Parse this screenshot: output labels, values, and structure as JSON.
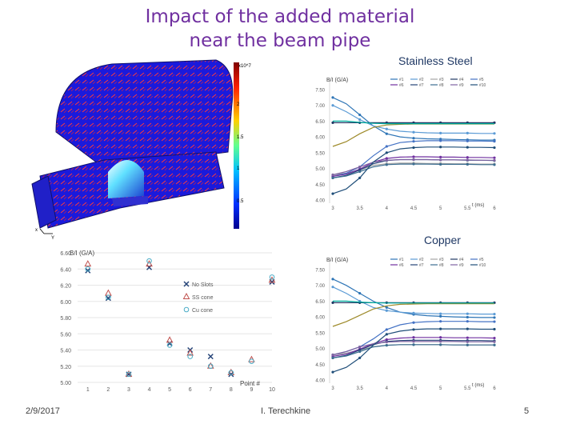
{
  "slide": {
    "title_line1": "Impact of the added material",
    "title_line2": "near the beam pipe",
    "label_ss": "Stainless Steel",
    "label_cu": "Copper",
    "footer_date": "2/9/2017",
    "footer_author": "I. Terechkine",
    "footer_page": "5"
  },
  "sim": {
    "colorbar_exp": "x10^7",
    "colorbar_ticks": [
      "2",
      "1.5",
      "1",
      "0.5"
    ],
    "axis_x": "x",
    "axis_y": "Y"
  },
  "colors": {
    "title": "#7030a0",
    "series": [
      "#2e75b6",
      "#5b9bd5",
      "#a5a5a5",
      "#203864",
      "#4472c4",
      "#7030a0",
      "#264478",
      "#3c6e91",
      "#8064a2",
      "#1f4e79",
      "#9e8a2a",
      "#00b0a0"
    ]
  },
  "chart_data": [
    {
      "type": "scatter",
      "ylabel": "B/I (G/A)",
      "xlabel": "Point #",
      "xlim": [
        0.5,
        10
      ],
      "ylim": [
        5.0,
        6.6
      ],
      "x_ticks": [
        1,
        2,
        3,
        4,
        5,
        6,
        7,
        8,
        9,
        10
      ],
      "y_ticks": [
        "5.00",
        "5.20",
        "5.40",
        "5.60",
        "5.80",
        "6.00",
        "6.20",
        "6.40",
        "6.60"
      ],
      "grid": true,
      "legend_position": "right",
      "series": [
        {
          "name": "No Slots",
          "marker": "x",
          "color": "#264478",
          "x": [
            1,
            2,
            3,
            4,
            5,
            6,
            7,
            8,
            10
          ],
          "y": [
            6.38,
            6.04,
            5.1,
            6.42,
            5.48,
            5.4,
            5.32,
            5.1,
            6.24
          ]
        },
        {
          "name": "SS cone",
          "marker": "triangle",
          "color": "#c0504d",
          "x": [
            1,
            2,
            3,
            4,
            5,
            6,
            7,
            8,
            9,
            10
          ],
          "y": [
            6.46,
            6.1,
            5.1,
            6.46,
            5.52,
            5.36,
            5.2,
            5.12,
            5.28,
            6.26
          ]
        },
        {
          "name": "Cu cone",
          "marker": "circle",
          "color": "#4bacc6",
          "x": [
            1,
            2,
            3,
            4,
            5,
            6,
            7,
            8,
            9,
            10
          ],
          "y": [
            6.4,
            6.05,
            5.1,
            6.5,
            5.46,
            5.32,
            5.2,
            5.12,
            5.26,
            6.3
          ]
        }
      ]
    },
    {
      "type": "line",
      "ylabel": "B/I (G/A)",
      "xlabel": "t (ms)",
      "xlim": [
        3,
        6
      ],
      "ylim": [
        4.0,
        7.5
      ],
      "x_ticks": [
        "3",
        "3.5",
        "4",
        "4.5",
        "5",
        "5.5",
        "6"
      ],
      "y_ticks": [
        "4.00",
        "4.50",
        "5.00",
        "5.50",
        "6.00",
        "6.50",
        "7.00",
        "7.50"
      ],
      "legend_position": "top",
      "x": [
        3,
        3.25,
        3.5,
        3.75,
        4,
        4.25,
        4.5,
        4.75,
        5,
        5.25,
        5.5,
        5.75,
        6
      ],
      "series": [
        {
          "name": "#1",
          "y": [
            7.25,
            7.05,
            6.7,
            6.35,
            6.1,
            6.0,
            5.96,
            5.94,
            5.93,
            5.92,
            5.91,
            5.9,
            5.9
          ]
        },
        {
          "name": "#2",
          "y": [
            7.0,
            6.8,
            6.55,
            6.35,
            6.25,
            6.18,
            6.15,
            6.13,
            6.12,
            6.12,
            6.12,
            6.11,
            6.11
          ]
        },
        {
          "name": "#3",
          "y": [
            4.8,
            4.85,
            4.95,
            5.1,
            5.15,
            5.17,
            5.17,
            5.16,
            5.16,
            5.15,
            5.15,
            5.14,
            5.14
          ]
        },
        {
          "name": "#4",
          "y": [
            6.45,
            6.45,
            6.45,
            6.45,
            6.45,
            6.45,
            6.45,
            6.45,
            6.45,
            6.45,
            6.45,
            6.45,
            6.45
          ]
        },
        {
          "name": "#5",
          "y": [
            4.75,
            4.85,
            5.05,
            5.4,
            5.7,
            5.82,
            5.86,
            5.88,
            5.88,
            5.88,
            5.87,
            5.87,
            5.86
          ]
        },
        {
          "name": "#6",
          "y": [
            4.75,
            4.82,
            4.98,
            5.2,
            5.32,
            5.36,
            5.37,
            5.37,
            5.36,
            5.36,
            5.35,
            5.35,
            5.34
          ]
        },
        {
          "name": "#7",
          "y": [
            4.7,
            4.78,
            4.95,
            5.15,
            5.25,
            5.28,
            5.28,
            5.28,
            5.27,
            5.27,
            5.26,
            5.26,
            5.25
          ]
        },
        {
          "name": "#8",
          "y": [
            4.7,
            4.76,
            4.9,
            5.05,
            5.12,
            5.14,
            5.14,
            5.14,
            5.13,
            5.13,
            5.13,
            5.12,
            5.12
          ]
        },
        {
          "name": "#9",
          "y": [
            4.8,
            4.9,
            5.05,
            5.2,
            5.26,
            5.28,
            5.28,
            5.28,
            5.27,
            5.27,
            5.27,
            5.26,
            5.26
          ]
        },
        {
          "name": "#10",
          "y": [
            4.2,
            4.35,
            4.7,
            5.2,
            5.5,
            5.62,
            5.66,
            5.68,
            5.68,
            5.68,
            5.67,
            5.67,
            5.66
          ]
        },
        {
          "name": "",
          "y": [
            5.7,
            5.85,
            6.1,
            6.3,
            6.38,
            6.4,
            6.41,
            6.41,
            6.41,
            6.41,
            6.41,
            6.41,
            6.41
          ]
        },
        {
          "name": "",
          "y": [
            6.5,
            6.5,
            6.46,
            6.43,
            6.42,
            6.42,
            6.42,
            6.42,
            6.42,
            6.42,
            6.42,
            6.42,
            6.42
          ]
        }
      ]
    },
    {
      "type": "line",
      "ylabel": "B/I (G/A)",
      "xlabel": "t (ms)",
      "xlim": [
        3,
        6
      ],
      "ylim": [
        4.0,
        7.5
      ],
      "x_ticks": [
        "3",
        "3.5",
        "4",
        "4.5",
        "5",
        "5.5",
        "6"
      ],
      "y_ticks": [
        "4.00",
        "4.50",
        "5.00",
        "5.50",
        "6.00",
        "6.50",
        "7.00",
        "7.50"
      ],
      "legend_position": "top",
      "x": [
        3,
        3.25,
        3.5,
        3.75,
        4,
        4.25,
        4.5,
        4.75,
        5,
        5.25,
        5.5,
        5.75,
        6
      ],
      "series": [
        {
          "name": "#1",
          "y": [
            7.2,
            7.0,
            6.75,
            6.5,
            6.3,
            6.15,
            6.08,
            6.04,
            6.02,
            6.0,
            5.99,
            5.98,
            5.98
          ]
        },
        {
          "name": "#2",
          "y": [
            6.95,
            6.75,
            6.5,
            6.3,
            6.2,
            6.15,
            6.12,
            6.11,
            6.1,
            6.1,
            6.1,
            6.09,
            6.09
          ]
        },
        {
          "name": "#3",
          "y": [
            4.8,
            4.85,
            4.95,
            5.05,
            5.1,
            5.12,
            5.12,
            5.12,
            5.12,
            5.11,
            5.11,
            5.11,
            5.11
          ]
        },
        {
          "name": "#4",
          "y": [
            6.45,
            6.45,
            6.45,
            6.45,
            6.45,
            6.45,
            6.45,
            6.45,
            6.45,
            6.45,
            6.45,
            6.45,
            6.45
          ]
        },
        {
          "name": "#5",
          "y": [
            4.8,
            4.9,
            5.05,
            5.3,
            5.6,
            5.75,
            5.82,
            5.85,
            5.86,
            5.86,
            5.86,
            5.85,
            5.85
          ]
        },
        {
          "name": "#6",
          "y": [
            4.75,
            4.82,
            4.98,
            5.15,
            5.28,
            5.33,
            5.35,
            5.35,
            5.35,
            5.34,
            5.34,
            5.34,
            5.33
          ]
        },
        {
          "name": "#7",
          "y": [
            4.7,
            4.78,
            4.95,
            5.12,
            5.22,
            5.25,
            5.26,
            5.26,
            5.26,
            5.25,
            5.25,
            5.25,
            5.24
          ]
        },
        {
          "name": "#8",
          "y": [
            4.7,
            4.76,
            4.9,
            5.05,
            5.1,
            5.12,
            5.12,
            5.12,
            5.12,
            5.11,
            5.11,
            5.11,
            5.11
          ]
        },
        {
          "name": "#9",
          "y": [
            4.8,
            4.9,
            5.05,
            5.15,
            5.2,
            5.22,
            5.22,
            5.22,
            5.22,
            5.22,
            5.21,
            5.21,
            5.21
          ]
        },
        {
          "name": "#10",
          "y": [
            4.25,
            4.4,
            4.7,
            5.1,
            5.45,
            5.55,
            5.6,
            5.62,
            5.62,
            5.62,
            5.62,
            5.61,
            5.61
          ]
        },
        {
          "name": "",
          "y": [
            5.7,
            5.85,
            6.05,
            6.25,
            6.35,
            6.4,
            6.41,
            6.42,
            6.42,
            6.42,
            6.42,
            6.42,
            6.42
          ]
        },
        {
          "name": "",
          "y": [
            6.5,
            6.5,
            6.47,
            6.45,
            6.44,
            6.44,
            6.44,
            6.44,
            6.44,
            6.44,
            6.44,
            6.44,
            6.44
          ]
        }
      ]
    }
  ]
}
